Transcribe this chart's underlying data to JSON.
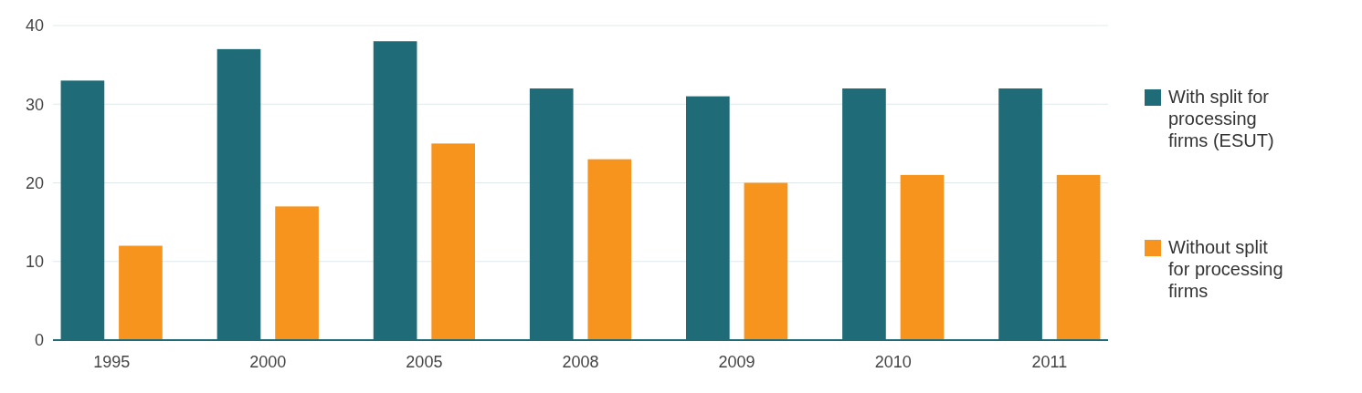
{
  "chart_data": {
    "type": "bar",
    "categories": [
      "1995",
      "2000",
      "2005",
      "2008",
      "2009",
      "2010",
      "2011"
    ],
    "series": [
      {
        "name": "With split for processing firms (ESUT)",
        "color": "#1f6b78",
        "values": [
          33,
          37,
          38,
          32,
          31,
          32,
          32
        ]
      },
      {
        "name": "Without split for processing firms",
        "color": "#f7941d",
        "values": [
          12,
          17,
          25,
          23,
          20,
          21,
          21
        ]
      }
    ],
    "ylim": [
      0,
      40
    ],
    "yticks": [
      0,
      10,
      20,
      30,
      40
    ],
    "grid": "y",
    "legend": "right"
  }
}
